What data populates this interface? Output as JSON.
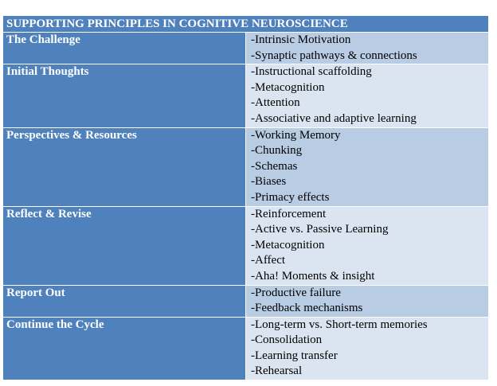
{
  "table": {
    "title": "SUPPORTING PRINCIPLES IN COGNITIVE NEUROSCIENCE",
    "rows": [
      {
        "label": "The Challenge",
        "shade": "dark",
        "items": [
          "-Intrinsic Motivation",
          "-Synaptic pathways & connections"
        ]
      },
      {
        "label": "Initial Thoughts",
        "shade": "light",
        "items": [
          "-Instructional scaffolding",
          "-Metacognition",
          "-Attention",
          "-Associative and adaptive learning"
        ]
      },
      {
        "label": "Perspectives & Resources",
        "shade": "dark",
        "items": [
          "-Working Memory",
          "-Chunking",
          "-Schemas",
          "-Biases",
          "-Primacy effects"
        ]
      },
      {
        "label": "Reflect & Revise",
        "shade": "light",
        "items": [
          "-Reinforcement",
          "-Active vs. Passive Learning",
          "-Metacognition",
          "-Affect",
          "-Aha! Moments & insight"
        ]
      },
      {
        "label": "Report Out",
        "shade": "dark",
        "items": [
          "-Productive failure",
          "-Feedback mechanisms"
        ]
      },
      {
        "label": "Continue the Cycle",
        "shade": "light",
        "items": [
          "-Long-term vs. Short-term memories",
          "-Consolidation",
          "-Learning transfer",
          "-Rehearsal"
        ]
      }
    ]
  },
  "colors": {
    "header_blue": "#4f81bd",
    "dark_row": "#b8cce4",
    "light_row": "#dbe5f1"
  }
}
